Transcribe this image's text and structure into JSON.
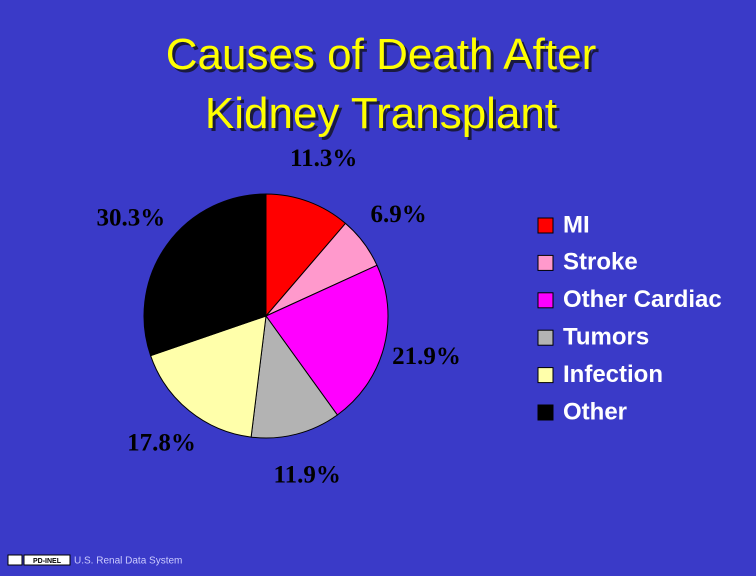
{
  "chart_data": {
    "type": "pie",
    "title": [
      "Causes of Death After",
      "Kidney Transplant"
    ],
    "categories": [
      "MI",
      "Stroke",
      "Other Cardiac",
      "Tumors",
      "Infection",
      "Other"
    ],
    "values": [
      11.3,
      6.9,
      21.9,
      11.9,
      17.8,
      30.3
    ],
    "value_labels": [
      "11.3%",
      "6.9%",
      "21.9%",
      "11.9%",
      "17.8%",
      "30.3%"
    ],
    "colors": [
      "#ff0000",
      "#ff99cc",
      "#ff00ff",
      "#b3b3b3",
      "#ffffaa",
      "#000000"
    ],
    "legend": "right"
  },
  "footer": {
    "logo": "PD-INEL",
    "source": "U.S. Renal Data System"
  }
}
